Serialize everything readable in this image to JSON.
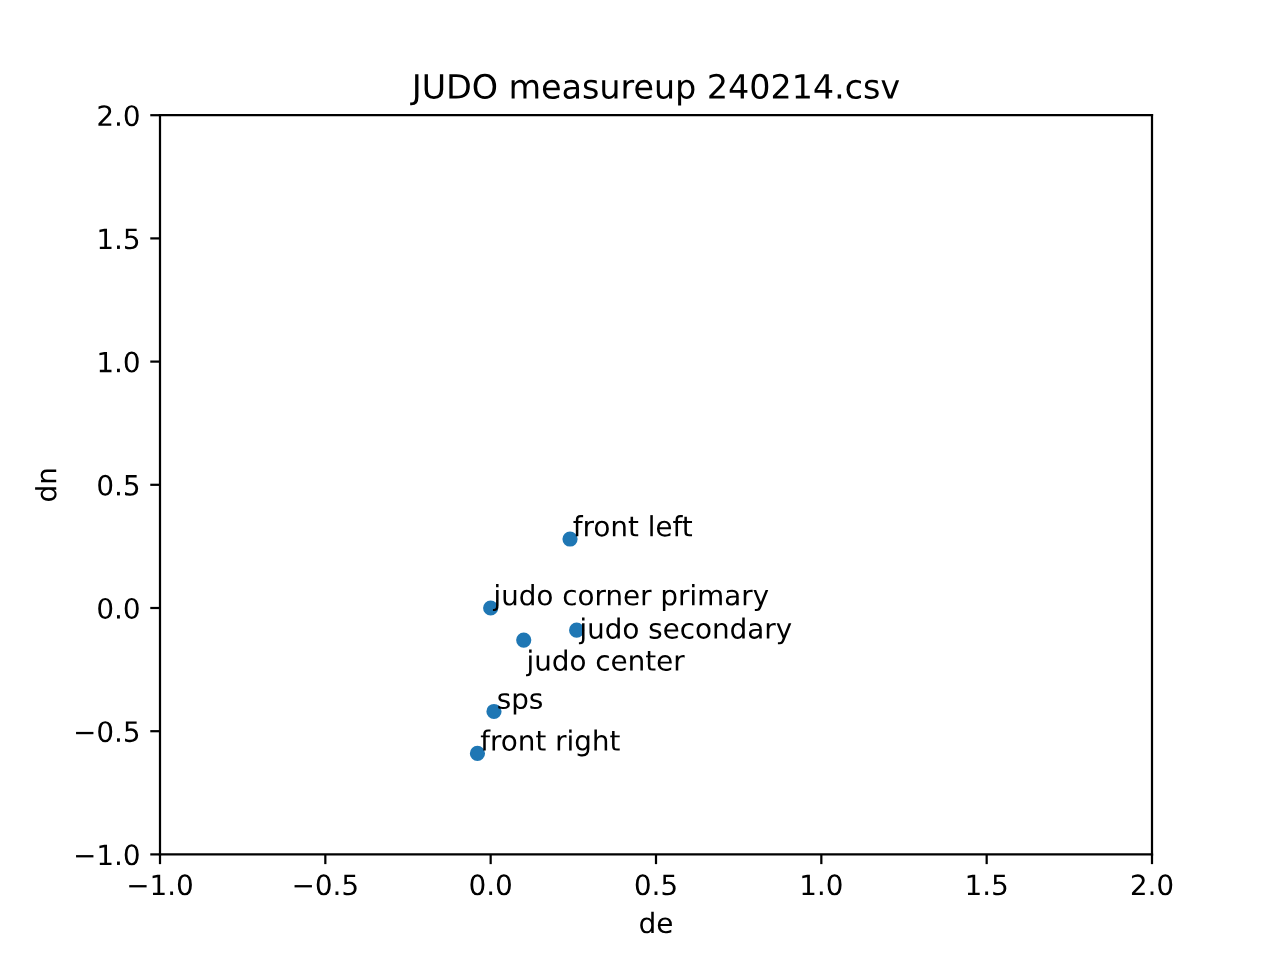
{
  "chart_data": {
    "type": "scatter",
    "title": "JUDO measureup 240214.csv",
    "xlabel": "de",
    "ylabel": "dn",
    "x": [
      0.24,
      0.0,
      0.26,
      0.1,
      0.01,
      -0.04
    ],
    "values": [
      0.28,
      0.0,
      -0.09,
      -0.13,
      -0.42,
      -0.59
    ],
    "color": "#1f77b4",
    "marker": "circle",
    "annotations": [
      {
        "text": "front left",
        "x": 0.24,
        "y": 0.28
      },
      {
        "text": "judo corner primary",
        "x": 0.0,
        "y": 0.0
      },
      {
        "text": "judo secondary",
        "x": 0.26,
        "y": -0.09
      },
      {
        "text": "judo center",
        "x": 0.1,
        "y": -0.13
      },
      {
        "text": "sps",
        "x": 0.01,
        "y": -0.42
      },
      {
        "text": "front right",
        "x": -0.04,
        "y": -0.59
      }
    ],
    "xlim": [
      -1.0,
      2.0
    ],
    "ylim": [
      -1.0,
      2.0
    ],
    "xticks": [
      {
        "value": -1.0,
        "label": "−1.0"
      },
      {
        "value": -0.5,
        "label": "−0.5"
      },
      {
        "value": 0.0,
        "label": "0.0"
      },
      {
        "value": 0.5,
        "label": "0.5"
      },
      {
        "value": 1.0,
        "label": "1.0"
      },
      {
        "value": 1.5,
        "label": "1.5"
      },
      {
        "value": 2.0,
        "label": "2.0"
      }
    ],
    "yticks": [
      {
        "value": -1.0,
        "label": "−1.0"
      },
      {
        "value": -0.5,
        "label": "−0.5"
      },
      {
        "value": 0.0,
        "label": "0.0"
      },
      {
        "value": 0.5,
        "label": "0.5"
      },
      {
        "value": 1.0,
        "label": "1.0"
      },
      {
        "value": 1.5,
        "label": "1.5"
      },
      {
        "value": 2.0,
        "label": "2.0"
      }
    ]
  }
}
